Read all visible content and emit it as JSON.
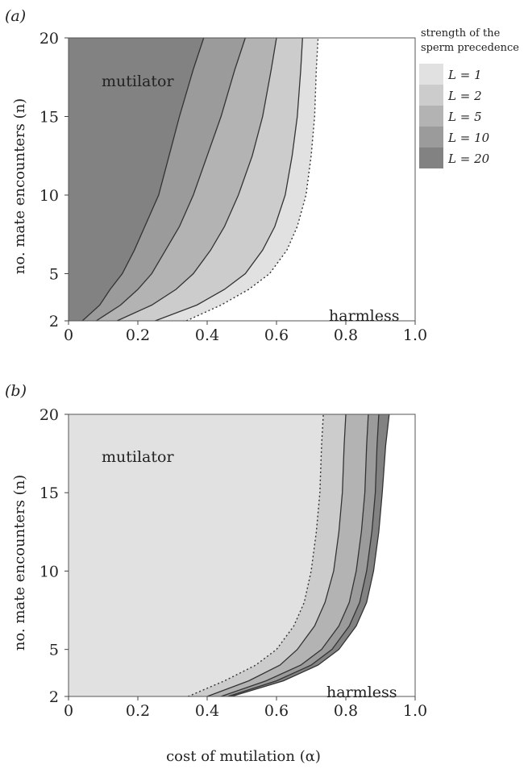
{
  "colors": {
    "L1": "#e1e1e1",
    "L2": "#cccccc",
    "L5": "#b3b3b3",
    "L10": "#9b9b9b",
    "L20": "#828282",
    "boundary": "#333333",
    "frame": "#555555"
  },
  "legend": {
    "title_line1": "strength of the",
    "title_line2": "sperm precedence",
    "items": [
      {
        "label": "L = 1",
        "color": "#e1e1e1"
      },
      {
        "label": "L = 2",
        "color": "#cccccc"
      },
      {
        "label": "L = 5",
        "color": "#b3b3b3"
      },
      {
        "label": "L = 10",
        "color": "#9b9b9b"
      },
      {
        "label": "L = 20",
        "color": "#828282"
      }
    ]
  },
  "chart_data": [
    {
      "type": "area",
      "panel_label": "(a)",
      "ylabel": "no. mate encounters (n)",
      "xlabel": "",
      "xlim": [
        0,
        1
      ],
      "ylim": [
        2,
        20
      ],
      "x_ticks": [
        "0",
        "0.2",
        "0.4",
        "0.6",
        "0.8",
        "1.0"
      ],
      "y_ticks": [
        "2",
        "5",
        "10",
        "15",
        "20"
      ],
      "region_labels": {
        "mutilator": "mutilator",
        "harmless": "harmless"
      },
      "series": [
        {
          "name": "L = 1",
          "style": "dotted",
          "color": "#e1e1e1",
          "points": [
            [
              0.34,
              2
            ],
            [
              0.44,
              3
            ],
            [
              0.52,
              4
            ],
            [
              0.58,
              5
            ],
            [
              0.63,
              6.5
            ],
            [
              0.66,
              8
            ],
            [
              0.685,
              10
            ],
            [
              0.7,
              12.5
            ],
            [
              0.71,
              15
            ],
            [
              0.715,
              18
            ],
            [
              0.72,
              20
            ]
          ]
        },
        {
          "name": "L = 2",
          "style": "solid",
          "color": "#cccccc",
          "points": [
            [
              0.25,
              2
            ],
            [
              0.37,
              3
            ],
            [
              0.45,
              4
            ],
            [
              0.51,
              5
            ],
            [
              0.56,
              6.5
            ],
            [
              0.595,
              8
            ],
            [
              0.625,
              10
            ],
            [
              0.645,
              12.5
            ],
            [
              0.66,
              15
            ],
            [
              0.67,
              18
            ],
            [
              0.675,
              20
            ]
          ]
        },
        {
          "name": "L = 5",
          "style": "solid",
          "color": "#b3b3b3",
          "points": [
            [
              0.14,
              2
            ],
            [
              0.24,
              3
            ],
            [
              0.31,
              4
            ],
            [
              0.36,
              5
            ],
            [
              0.41,
              6.5
            ],
            [
              0.45,
              8
            ],
            [
              0.49,
              10
            ],
            [
              0.53,
              12.5
            ],
            [
              0.56,
              15
            ],
            [
              0.585,
              18
            ],
            [
              0.6,
              20
            ]
          ]
        },
        {
          "name": "L = 10",
          "style": "solid",
          "color": "#9b9b9b",
          "points": [
            [
              0.08,
              2
            ],
            [
              0.15,
              3
            ],
            [
              0.2,
              4
            ],
            [
              0.24,
              5
            ],
            [
              0.28,
              6.5
            ],
            [
              0.32,
              8
            ],
            [
              0.36,
              10
            ],
            [
              0.4,
              12.5
            ],
            [
              0.44,
              15
            ],
            [
              0.48,
              18
            ],
            [
              0.51,
              20
            ]
          ]
        },
        {
          "name": "L = 20",
          "style": "solid",
          "color": "#828282",
          "points": [
            [
              0.04,
              2
            ],
            [
              0.09,
              3
            ],
            [
              0.12,
              4
            ],
            [
              0.155,
              5
            ],
            [
              0.19,
              6.5
            ],
            [
              0.22,
              8
            ],
            [
              0.26,
              10
            ],
            [
              0.29,
              12.5
            ],
            [
              0.32,
              15
            ],
            [
              0.36,
              18
            ],
            [
              0.39,
              20
            ]
          ]
        }
      ]
    },
    {
      "type": "area",
      "panel_label": "(b)",
      "ylabel": "no. mate encounters (n)",
      "xlabel": "cost of mutilation (α)",
      "xlim": [
        0,
        1
      ],
      "ylim": [
        2,
        20
      ],
      "x_ticks": [
        "0",
        "0.2",
        "0.4",
        "0.6",
        "0.8",
        "1.0"
      ],
      "y_ticks": [
        "2",
        "5",
        "10",
        "15",
        "20"
      ],
      "region_labels": {
        "mutilator": "mutilator",
        "harmless": "harmless"
      },
      "series": [
        {
          "name": "L = 1",
          "style": "dotted",
          "color": "#e1e1e1",
          "points": [
            [
              0.345,
              2
            ],
            [
              0.45,
              3
            ],
            [
              0.54,
              4
            ],
            [
              0.6,
              5
            ],
            [
              0.65,
              6.5
            ],
            [
              0.68,
              8
            ],
            [
              0.7,
              10
            ],
            [
              0.715,
              12.5
            ],
            [
              0.725,
              15
            ],
            [
              0.73,
              18
            ],
            [
              0.735,
              20
            ]
          ]
        },
        {
          "name": "L = 2",
          "style": "solid",
          "color": "#cccccc",
          "points": [
            [
              0.4,
              2
            ],
            [
              0.52,
              3
            ],
            [
              0.61,
              4
            ],
            [
              0.66,
              5
            ],
            [
              0.71,
              6.5
            ],
            [
              0.74,
              8
            ],
            [
              0.765,
              10
            ],
            [
              0.78,
              12.5
            ],
            [
              0.79,
              15
            ],
            [
              0.795,
              18
            ],
            [
              0.8,
              20
            ]
          ]
        },
        {
          "name": "L = 5",
          "style": "solid",
          "color": "#b3b3b3",
          "points": [
            [
              0.44,
              2
            ],
            [
              0.57,
              3
            ],
            [
              0.67,
              4
            ],
            [
              0.73,
              5
            ],
            [
              0.78,
              6.5
            ],
            [
              0.81,
              8
            ],
            [
              0.83,
              10
            ],
            [
              0.845,
              12.5
            ],
            [
              0.855,
              15
            ],
            [
              0.86,
              18
            ],
            [
              0.865,
              20
            ]
          ]
        },
        {
          "name": "L = 10",
          "style": "solid",
          "color": "#9b9b9b",
          "points": [
            [
              0.46,
              2
            ],
            [
              0.6,
              3
            ],
            [
              0.7,
              4
            ],
            [
              0.76,
              5
            ],
            [
              0.81,
              6.5
            ],
            [
              0.84,
              8
            ],
            [
              0.86,
              10
            ],
            [
              0.875,
              12.5
            ],
            [
              0.885,
              15
            ],
            [
              0.89,
              18
            ],
            [
              0.895,
              20
            ]
          ]
        },
        {
          "name": "L = 20",
          "style": "solid",
          "color": "#828282",
          "points": [
            [
              0.47,
              2
            ],
            [
              0.62,
              3
            ],
            [
              0.72,
              4
            ],
            [
              0.78,
              5
            ],
            [
              0.83,
              6.5
            ],
            [
              0.86,
              8
            ],
            [
              0.88,
              10
            ],
            [
              0.895,
              12.5
            ],
            [
              0.905,
              15
            ],
            [
              0.915,
              18
            ],
            [
              0.925,
              20
            ]
          ]
        }
      ]
    }
  ]
}
